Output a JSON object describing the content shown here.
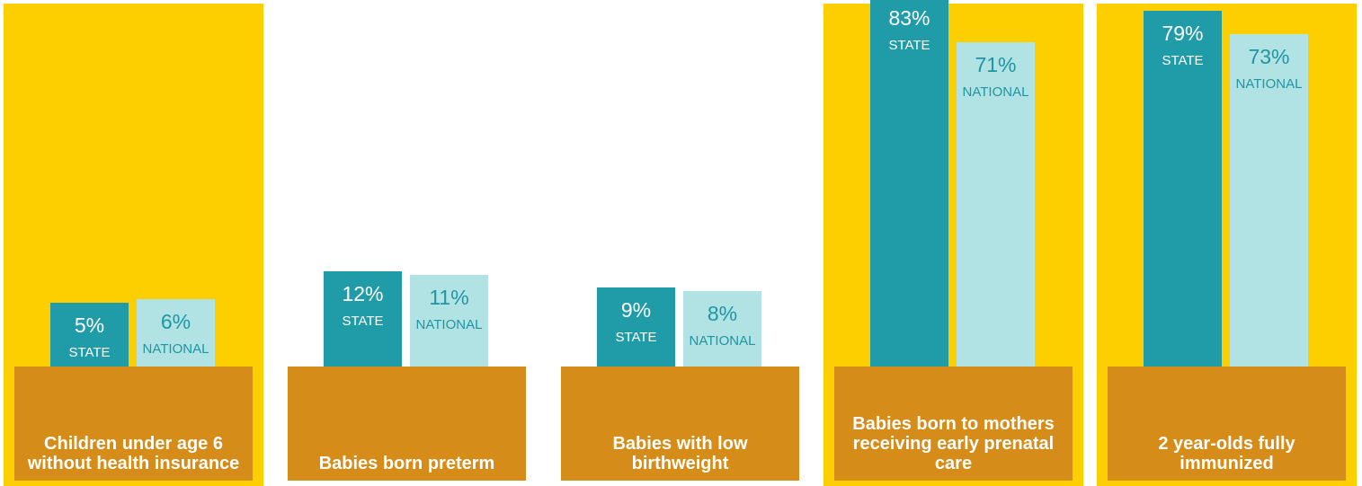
{
  "colors": {
    "panel_highlight": "#fdcf00",
    "base": "#d68c18",
    "state_bar": "#209ca8",
    "national_bar": "#b1e2e4",
    "national_text": "#1f96a3",
    "label_text": "#ffffff"
  },
  "chart_data": [
    {
      "type": "bar",
      "title": "Children under age 6 without health insurance",
      "highlighted": true,
      "categories": [
        "STATE",
        "NATIONAL"
      ],
      "values": [
        5,
        6
      ],
      "value_labels": [
        "5%",
        "6%"
      ]
    },
    {
      "type": "bar",
      "title": "Babies born preterm",
      "highlighted": false,
      "categories": [
        "STATE",
        "NATIONAL"
      ],
      "values": [
        12,
        11
      ],
      "value_labels": [
        "12%",
        "11%"
      ]
    },
    {
      "type": "bar",
      "title": "Babies with low birthweight",
      "highlighted": false,
      "categories": [
        "STATE",
        "NATIONAL"
      ],
      "values": [
        9,
        8
      ],
      "value_labels": [
        "9%",
        "8%"
      ]
    },
    {
      "type": "bar",
      "title": "Babies born to mothers receiving early prenatal care",
      "highlighted": true,
      "categories": [
        "STATE",
        "NATIONAL"
      ],
      "values": [
        83,
        71
      ],
      "value_labels": [
        "83%",
        "71%"
      ]
    },
    {
      "type": "bar",
      "title": "2 year-olds fully immunized",
      "highlighted": true,
      "categories": [
        "STATE",
        "NATIONAL"
      ],
      "values": [
        79,
        73
      ],
      "value_labels": [
        "79%",
        "73%"
      ]
    }
  ]
}
